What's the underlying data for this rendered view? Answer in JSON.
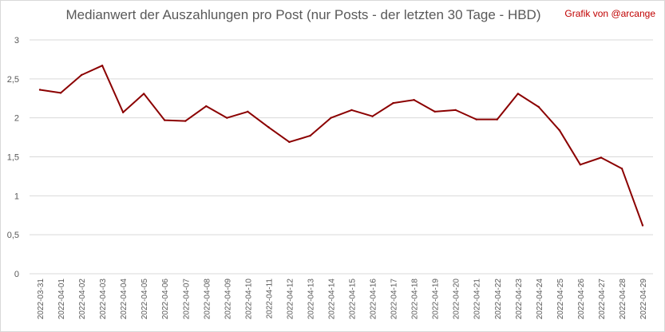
{
  "title": "Medianwert der Auszahlungen pro Post (nur Posts - der letzten 30 Tage - HBD)",
  "credit": "Grafik von @arcange",
  "chart_data": {
    "type": "line",
    "title": "Medianwert der Auszahlungen pro Post (nur Posts - der letzten 30 Tage - HBD)",
    "xlabel": "",
    "ylabel": "",
    "ylim": [
      0,
      3
    ],
    "yticks": [
      "0",
      "0,5",
      "1",
      "1,5",
      "2",
      "2,5",
      "3"
    ],
    "grid": "horizontal",
    "legend": "none",
    "colors": {
      "line": "#8b0000",
      "grid": "#d9d9d9",
      "text": "#595959",
      "credit": "#c00000"
    },
    "categories": [
      "2022-03-31",
      "2022-04-01",
      "2022-04-02",
      "2022-04-03",
      "2022-04-04",
      "2022-04-05",
      "2022-04-06",
      "2022-04-07",
      "2022-04-08",
      "2022-04-09",
      "2022-04-10",
      "2022-04-11",
      "2022-04-12",
      "2022-04-13",
      "2022-04-14",
      "2022-04-15",
      "2022-04-16",
      "2022-04-17",
      "2022-04-18",
      "2022-04-19",
      "2022-04-20",
      "2022-04-21",
      "2022-04-22",
      "2022-04-23",
      "2022-04-24",
      "2022-04-25",
      "2022-04-26",
      "2022-04-27",
      "2022-04-28",
      "2022-04-29"
    ],
    "series": [
      {
        "values": [
          2.36,
          2.32,
          2.55,
          2.67,
          2.07,
          2.31,
          1.97,
          1.96,
          2.15,
          2.0,
          2.08,
          1.88,
          1.69,
          1.77,
          2.0,
          2.1,
          2.02,
          2.19,
          2.23,
          2.08,
          2.1,
          1.98,
          1.98,
          2.31,
          2.14,
          1.84,
          1.4,
          1.49,
          1.35,
          0.62
        ]
      }
    ]
  }
}
